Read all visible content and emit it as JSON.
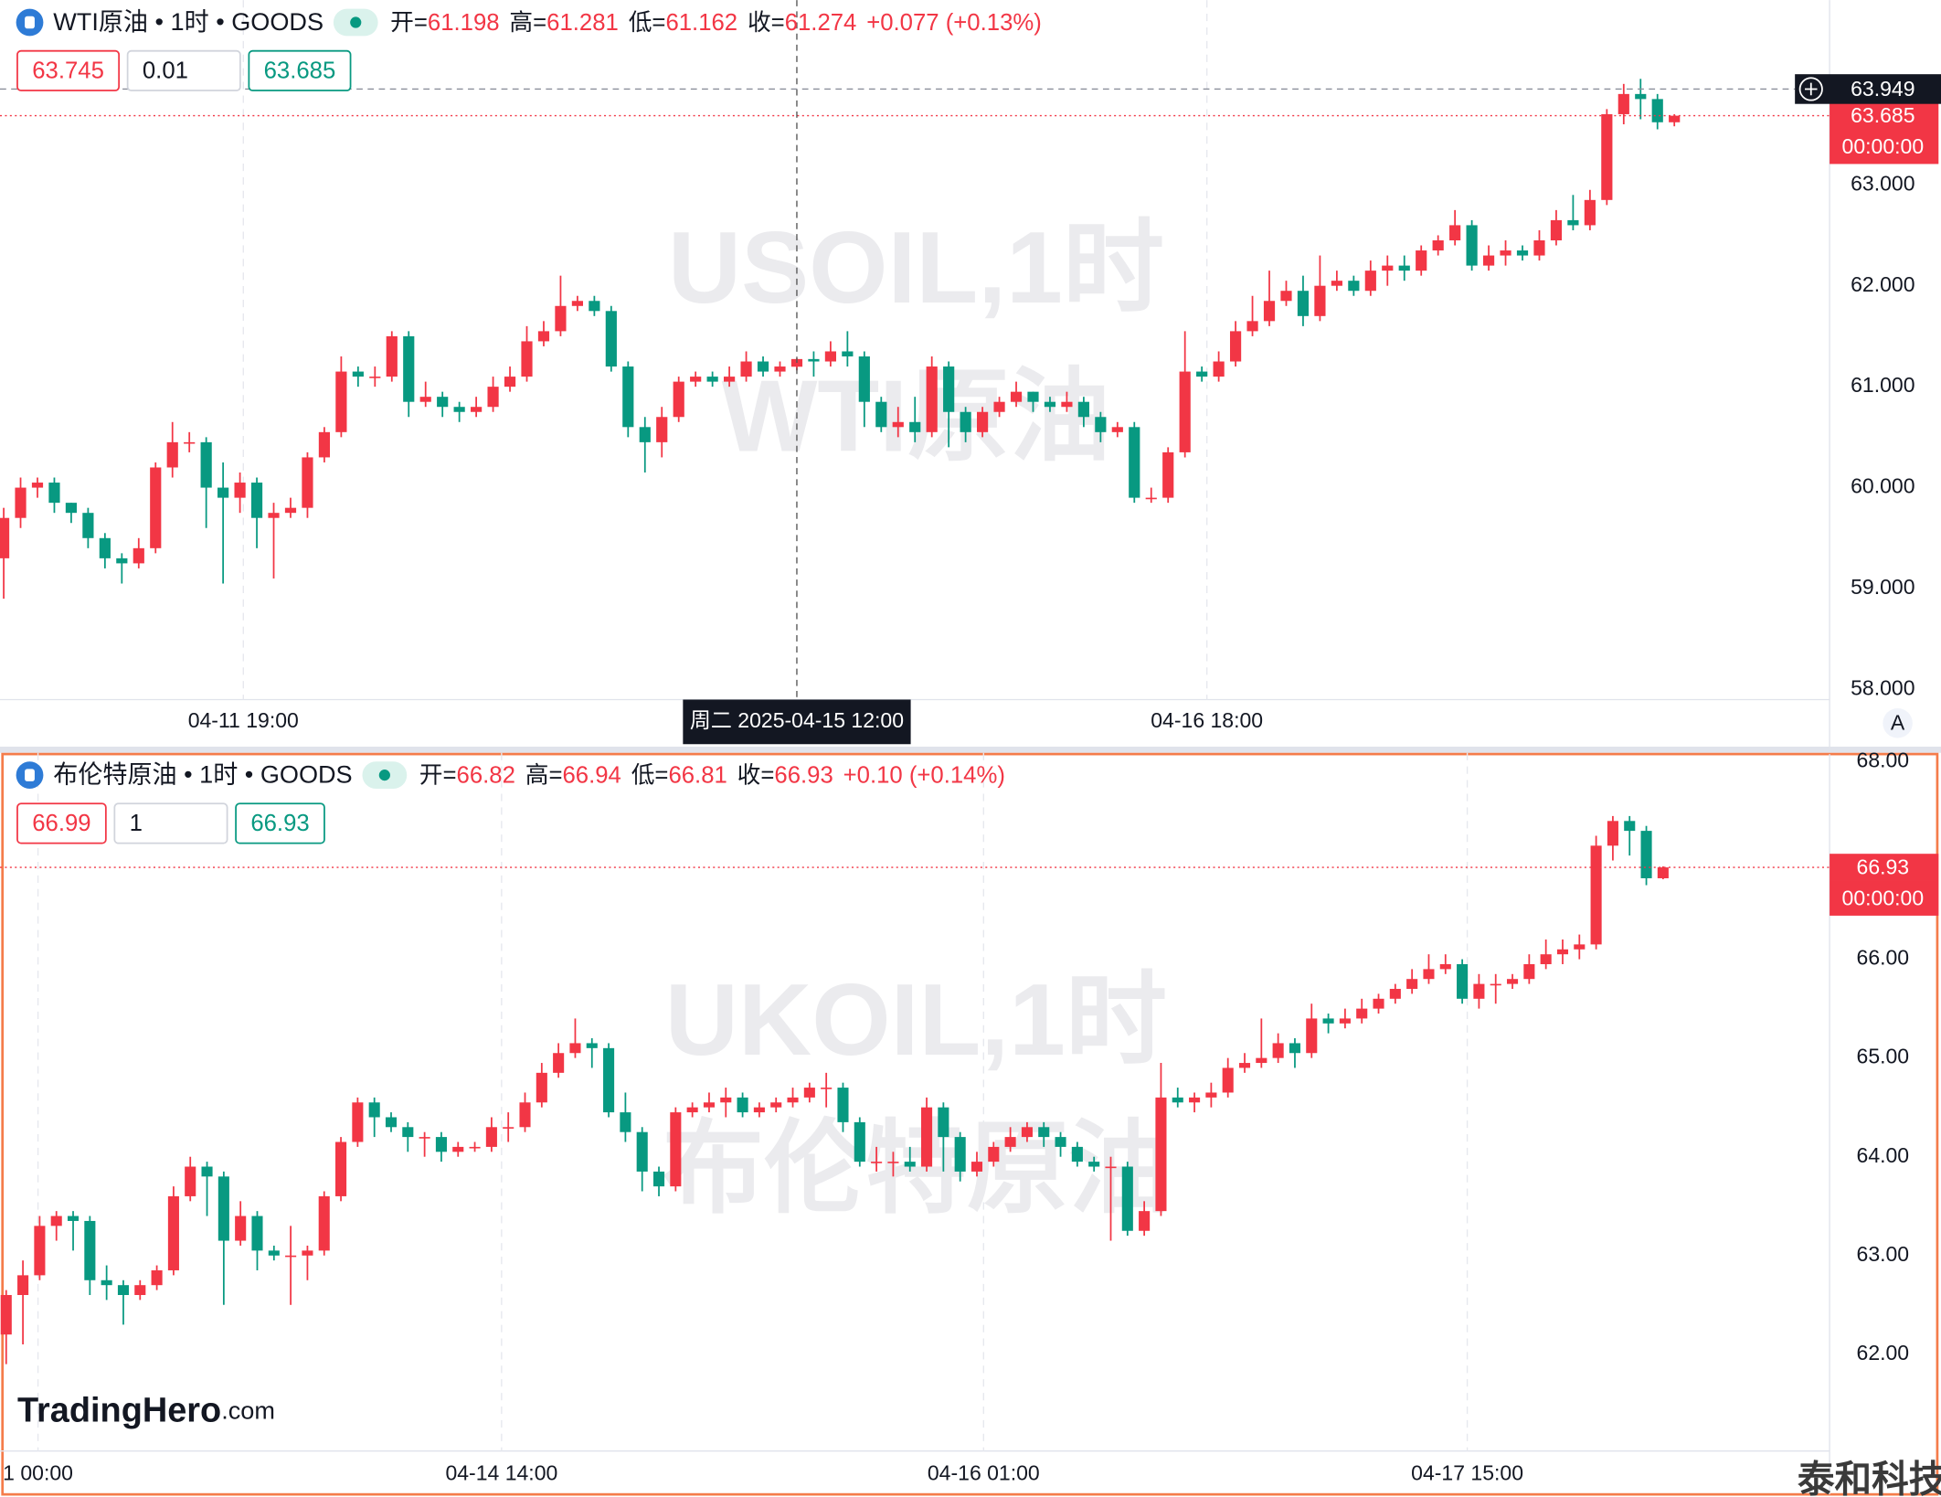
{
  "chart_data": [
    {
      "type": "candlestick",
      "symbol_label": "WTI原油 • 1时 • GOODS",
      "ohlc_labels": [
        "开=",
        "高=",
        "低=",
        "收="
      ],
      "change_label": "+0.077 (+0.13%)",
      "order_box": [
        63.745,
        0.01,
        63.685
      ],
      "watermark": [
        "USOIL,1时",
        "WTI原油"
      ],
      "up_color": "#f23645",
      "down_color": "#089981",
      "grid": "x",
      "countdown": "00:00:00",
      "crosshair": {
        "x": 47,
        "label": "周二 2025-04-15  12:00",
        "y": 63.949
      },
      "xlim": [
        -0.22,
        108.2
      ],
      "xticks": [
        {
          "value": 14.2,
          "label": "04-11 19:00"
        },
        {
          "value": 71.3,
          "label": "04-16 18:00"
        }
      ],
      "ylim": [
        57.9,
        64.83
      ],
      "yticks": [
        {
          "value": 58,
          "label": "58.000"
        },
        {
          "value": 59,
          "label": "59.000"
        },
        {
          "value": 60,
          "label": "60.000"
        },
        {
          "value": 61,
          "label": "61.000"
        },
        {
          "value": 62,
          "label": "62.000"
        },
        {
          "value": 63,
          "label": "63.000"
        }
      ],
      "open": [
        59.3,
        59.7,
        60.0,
        60.05,
        59.85,
        59.75,
        59.5,
        59.3,
        59.25,
        59.4,
        60.2,
        60.45,
        60.45,
        60.0,
        59.9,
        60.05,
        59.7,
        59.75,
        59.8,
        60.3,
        60.55,
        61.15,
        61.1,
        61.1,
        61.5,
        60.85,
        60.9,
        60.8,
        60.75,
        60.8,
        61.0,
        61.1,
        61.45,
        61.55,
        61.8,
        61.85,
        61.75,
        61.2,
        60.6,
        60.45,
        60.7,
        61.05,
        61.1,
        61.05,
        61.1,
        61.25,
        61.15,
        61.198,
        61.274,
        61.25,
        61.35,
        61.3,
        60.85,
        60.6,
        60.65,
        60.55,
        61.2,
        60.75,
        60.55,
        60.75,
        60.85,
        60.95,
        60.85,
        60.8,
        60.85,
        60.7,
        60.55,
        60.6,
        59.9,
        59.9,
        60.35,
        61.15,
        61.1,
        61.25,
        61.55,
        61.65,
        61.85,
        61.95,
        61.7,
        62.0,
        62.05,
        61.95,
        62.15,
        62.2,
        62.15,
        62.35,
        62.45,
        62.6,
        62.2,
        62.3,
        62.35,
        62.3,
        62.45,
        62.65,
        62.6,
        62.85,
        63.7,
        63.9,
        63.85,
        63.62
      ],
      "high": [
        59.8,
        60.1,
        60.1,
        60.1,
        59.85,
        59.8,
        59.55,
        59.35,
        59.5,
        60.25,
        60.65,
        60.55,
        60.5,
        60.25,
        60.15,
        60.1,
        59.85,
        59.9,
        60.35,
        60.6,
        61.3,
        61.2,
        61.2,
        61.55,
        61.55,
        61.05,
        60.95,
        60.85,
        60.9,
        61.1,
        61.2,
        61.6,
        61.65,
        62.1,
        61.9,
        61.9,
        61.8,
        61.25,
        60.7,
        60.8,
        61.1,
        61.15,
        61.15,
        61.2,
        61.35,
        61.3,
        61.25,
        61.281,
        61.35,
        61.45,
        61.55,
        61.35,
        60.9,
        60.8,
        60.9,
        61.3,
        61.25,
        60.8,
        60.8,
        60.9,
        61.05,
        60.95,
        60.9,
        60.95,
        60.9,
        60.75,
        60.65,
        60.65,
        60.0,
        60.4,
        61.55,
        61.2,
        61.35,
        61.65,
        61.9,
        62.15,
        62.05,
        62.1,
        62.3,
        62.15,
        62.1,
        62.25,
        62.3,
        62.3,
        62.4,
        62.5,
        62.75,
        62.65,
        62.4,
        62.45,
        62.4,
        62.55,
        62.75,
        62.9,
        62.95,
        63.75,
        64.0,
        64.05,
        63.9,
        63.7
      ],
      "low": [
        58.9,
        59.6,
        59.9,
        59.75,
        59.65,
        59.4,
        59.2,
        59.05,
        59.2,
        59.35,
        60.1,
        60.35,
        59.6,
        59.05,
        59.75,
        59.4,
        59.1,
        59.7,
        59.7,
        60.25,
        60.5,
        61.0,
        61.0,
        61.05,
        60.7,
        60.8,
        60.7,
        60.65,
        60.7,
        60.75,
        60.95,
        61.05,
        61.4,
        61.5,
        61.75,
        61.7,
        61.15,
        60.5,
        60.15,
        60.3,
        60.65,
        61.0,
        61.0,
        61.0,
        61.05,
        61.1,
        61.1,
        61.162,
        61.1,
        61.2,
        61.2,
        60.6,
        60.55,
        60.5,
        60.45,
        60.5,
        60.4,
        60.45,
        60.5,
        60.7,
        60.8,
        60.75,
        60.75,
        60.75,
        60.6,
        60.45,
        60.5,
        59.85,
        59.85,
        59.85,
        60.3,
        61.05,
        61.05,
        61.2,
        61.5,
        61.6,
        61.8,
        61.6,
        61.65,
        61.95,
        61.9,
        61.9,
        62.0,
        62.05,
        62.1,
        62.3,
        62.4,
        62.15,
        62.15,
        62.2,
        62.25,
        62.25,
        62.4,
        62.55,
        62.55,
        62.8,
        63.6,
        63.65,
        63.55,
        63.58
      ],
      "close": [
        59.7,
        60.0,
        60.05,
        59.85,
        59.75,
        59.5,
        59.3,
        59.25,
        59.4,
        60.2,
        60.45,
        60.45,
        60.0,
        59.9,
        60.05,
        59.7,
        59.75,
        59.8,
        60.3,
        60.55,
        61.15,
        61.1,
        61.1,
        61.5,
        60.85,
        60.9,
        60.8,
        60.75,
        60.8,
        61.0,
        61.1,
        61.45,
        61.55,
        61.8,
        61.85,
        61.75,
        61.2,
        60.6,
        60.45,
        60.7,
        61.05,
        61.1,
        61.05,
        61.1,
        61.25,
        61.15,
        61.2,
        61.274,
        61.25,
        61.35,
        61.3,
        60.85,
        60.6,
        60.65,
        60.55,
        61.2,
        60.75,
        60.55,
        60.75,
        60.85,
        60.95,
        60.85,
        60.8,
        60.85,
        60.7,
        60.55,
        60.6,
        59.9,
        59.9,
        60.35,
        61.15,
        61.1,
        61.25,
        61.55,
        61.65,
        61.85,
        61.95,
        61.7,
        62.0,
        62.05,
        61.95,
        62.15,
        62.2,
        62.15,
        62.35,
        62.45,
        62.6,
        62.2,
        62.3,
        62.35,
        62.3,
        62.45,
        62.65,
        62.6,
        62.85,
        63.7,
        63.9,
        63.85,
        63.62,
        63.685
      ]
    },
    {
      "type": "candlestick",
      "symbol_label": "布伦特原油 • 1时 • GOODS",
      "ohlc_labels": [
        "开=",
        "高=",
        "低=",
        "收="
      ],
      "change_label": "+0.10 (+0.14%)",
      "order_box": [
        66.99,
        1,
        66.93
      ],
      "watermark": [
        "UKOIL,1时",
        "布伦特原油"
      ],
      "up_color": "#f23645",
      "down_color": "#089981",
      "grid": "x",
      "countdown": "00:00:00",
      "xlim": [
        -0.37,
        108.95
      ],
      "xticks": [
        {
          "value": 1.9,
          "label": "1 00:00"
        },
        {
          "value": 29.6,
          "label": "04-14 14:00"
        },
        {
          "value": 58.4,
          "label": "04-16 01:00"
        },
        {
          "value": 87.3,
          "label": "04-17 15:00"
        }
      ],
      "ylim": [
        61.02,
        68.09
      ],
      "yticks": [
        {
          "value": 62,
          "label": "62.00"
        },
        {
          "value": 63,
          "label": "63.00"
        },
        {
          "value": 64,
          "label": "64.00"
        },
        {
          "value": 65,
          "label": "65.00"
        },
        {
          "value": 66,
          "label": "66.00"
        },
        {
          "value": 68,
          "label": "68.00"
        }
      ],
      "open": [
        62.2,
        62.6,
        62.8,
        63.3,
        63.4,
        63.35,
        62.75,
        62.7,
        62.6,
        62.7,
        62.85,
        63.6,
        63.9,
        63.8,
        63.15,
        63.4,
        63.05,
        63.0,
        63.0,
        63.05,
        63.6,
        64.15,
        64.55,
        64.4,
        64.3,
        64.2,
        64.2,
        64.05,
        64.1,
        64.1,
        64.3,
        64.3,
        64.55,
        64.85,
        65.05,
        65.15,
        65.1,
        64.45,
        64.25,
        63.85,
        63.7,
        64.45,
        64.5,
        64.55,
        64.6,
        64.45,
        64.5,
        64.55,
        64.6,
        64.7,
        64.7,
        64.35,
        63.95,
        63.95,
        63.95,
        63.9,
        64.5,
        64.2,
        63.85,
        63.95,
        64.1,
        64.2,
        64.3,
        64.2,
        64.1,
        63.95,
        63.9,
        63.9,
        63.25,
        63.45,
        64.6,
        64.55,
        64.6,
        64.65,
        64.9,
        64.95,
        65.0,
        65.15,
        65.05,
        65.4,
        65.35,
        65.4,
        65.5,
        65.6,
        65.7,
        65.8,
        65.9,
        65.95,
        65.6,
        65.75,
        65.75,
        65.8,
        65.95,
        66.05,
        66.1,
        66.15,
        67.15,
        67.4,
        67.3,
        66.82
      ],
      "high": [
        62.65,
        62.95,
        63.4,
        63.45,
        63.45,
        63.4,
        62.9,
        62.75,
        62.75,
        62.9,
        63.7,
        64.0,
        63.95,
        63.85,
        63.55,
        63.45,
        63.1,
        63.3,
        63.1,
        63.65,
        64.2,
        64.6,
        64.6,
        64.45,
        64.35,
        64.25,
        64.25,
        64.15,
        64.15,
        64.4,
        64.45,
        64.65,
        64.95,
        65.15,
        65.4,
        65.2,
        65.15,
        64.65,
        64.3,
        63.9,
        64.5,
        64.55,
        64.65,
        64.7,
        64.65,
        64.55,
        64.6,
        64.7,
        64.75,
        64.85,
        64.75,
        64.4,
        64.1,
        64.05,
        64.1,
        64.6,
        64.55,
        64.25,
        64.05,
        64.15,
        64.3,
        64.35,
        64.35,
        64.25,
        64.15,
        64.0,
        64.0,
        63.95,
        63.55,
        64.95,
        64.7,
        64.65,
        64.75,
        65.0,
        65.05,
        65.4,
        65.25,
        65.2,
        65.55,
        65.45,
        65.5,
        65.6,
        65.65,
        65.75,
        65.9,
        66.05,
        66.05,
        66.0,
        65.85,
        65.85,
        65.85,
        66.05,
        66.2,
        66.2,
        66.25,
        67.25,
        67.45,
        67.45,
        67.35,
        66.94
      ],
      "low": [
        61.9,
        62.1,
        62.75,
        63.15,
        63.05,
        62.6,
        62.55,
        62.3,
        62.55,
        62.65,
        62.8,
        63.55,
        63.4,
        62.5,
        63.1,
        62.85,
        62.95,
        62.5,
        62.75,
        63.0,
        63.55,
        64.1,
        64.2,
        64.25,
        64.05,
        64.0,
        63.95,
        64.0,
        64.05,
        64.05,
        64.15,
        64.25,
        64.5,
        64.8,
        65.0,
        64.9,
        64.4,
        64.15,
        63.65,
        63.6,
        63.65,
        64.4,
        64.45,
        64.4,
        64.4,
        64.4,
        64.45,
        64.5,
        64.55,
        64.5,
        64.25,
        63.9,
        63.85,
        63.8,
        63.85,
        63.85,
        63.85,
        63.75,
        63.8,
        63.9,
        64.05,
        64.15,
        64.1,
        64.0,
        63.9,
        63.85,
        63.15,
        63.2,
        63.2,
        63.4,
        64.5,
        64.45,
        64.5,
        64.6,
        64.85,
        64.9,
        64.95,
        64.9,
        65.0,
        65.25,
        65.3,
        65.35,
        65.45,
        65.55,
        65.65,
        65.75,
        65.85,
        65.55,
        65.5,
        65.55,
        65.7,
        65.75,
        65.9,
        65.95,
        66.0,
        66.1,
        67.0,
        67.05,
        66.75,
        66.81
      ],
      "close": [
        62.6,
        62.8,
        63.3,
        63.4,
        63.35,
        62.75,
        62.7,
        62.6,
        62.7,
        62.85,
        63.6,
        63.9,
        63.8,
        63.15,
        63.4,
        63.05,
        63.0,
        63.0,
        63.05,
        63.6,
        64.15,
        64.55,
        64.4,
        64.3,
        64.2,
        64.2,
        64.05,
        64.1,
        64.1,
        64.3,
        64.3,
        64.55,
        64.85,
        65.05,
        65.15,
        65.1,
        64.45,
        64.25,
        63.85,
        63.7,
        64.45,
        64.5,
        64.55,
        64.6,
        64.45,
        64.5,
        64.55,
        64.6,
        64.7,
        64.7,
        64.35,
        63.95,
        63.95,
        63.95,
        63.9,
        64.5,
        64.2,
        63.85,
        63.95,
        64.1,
        64.2,
        64.3,
        64.2,
        64.1,
        63.95,
        63.9,
        63.9,
        63.25,
        63.45,
        64.6,
        64.55,
        64.6,
        64.65,
        64.9,
        64.95,
        65.0,
        65.15,
        65.05,
        65.4,
        65.35,
        65.4,
        65.5,
        65.6,
        65.7,
        65.8,
        65.9,
        65.95,
        65.6,
        65.75,
        65.75,
        65.8,
        65.95,
        66.05,
        66.1,
        66.15,
        67.15,
        67.4,
        67.3,
        66.82,
        66.93
      ]
    }
  ],
  "brand": {
    "name": "TradingHero",
    "suffix": ".com"
  },
  "auto_button": "A",
  "corner_mark": "泰和科技"
}
